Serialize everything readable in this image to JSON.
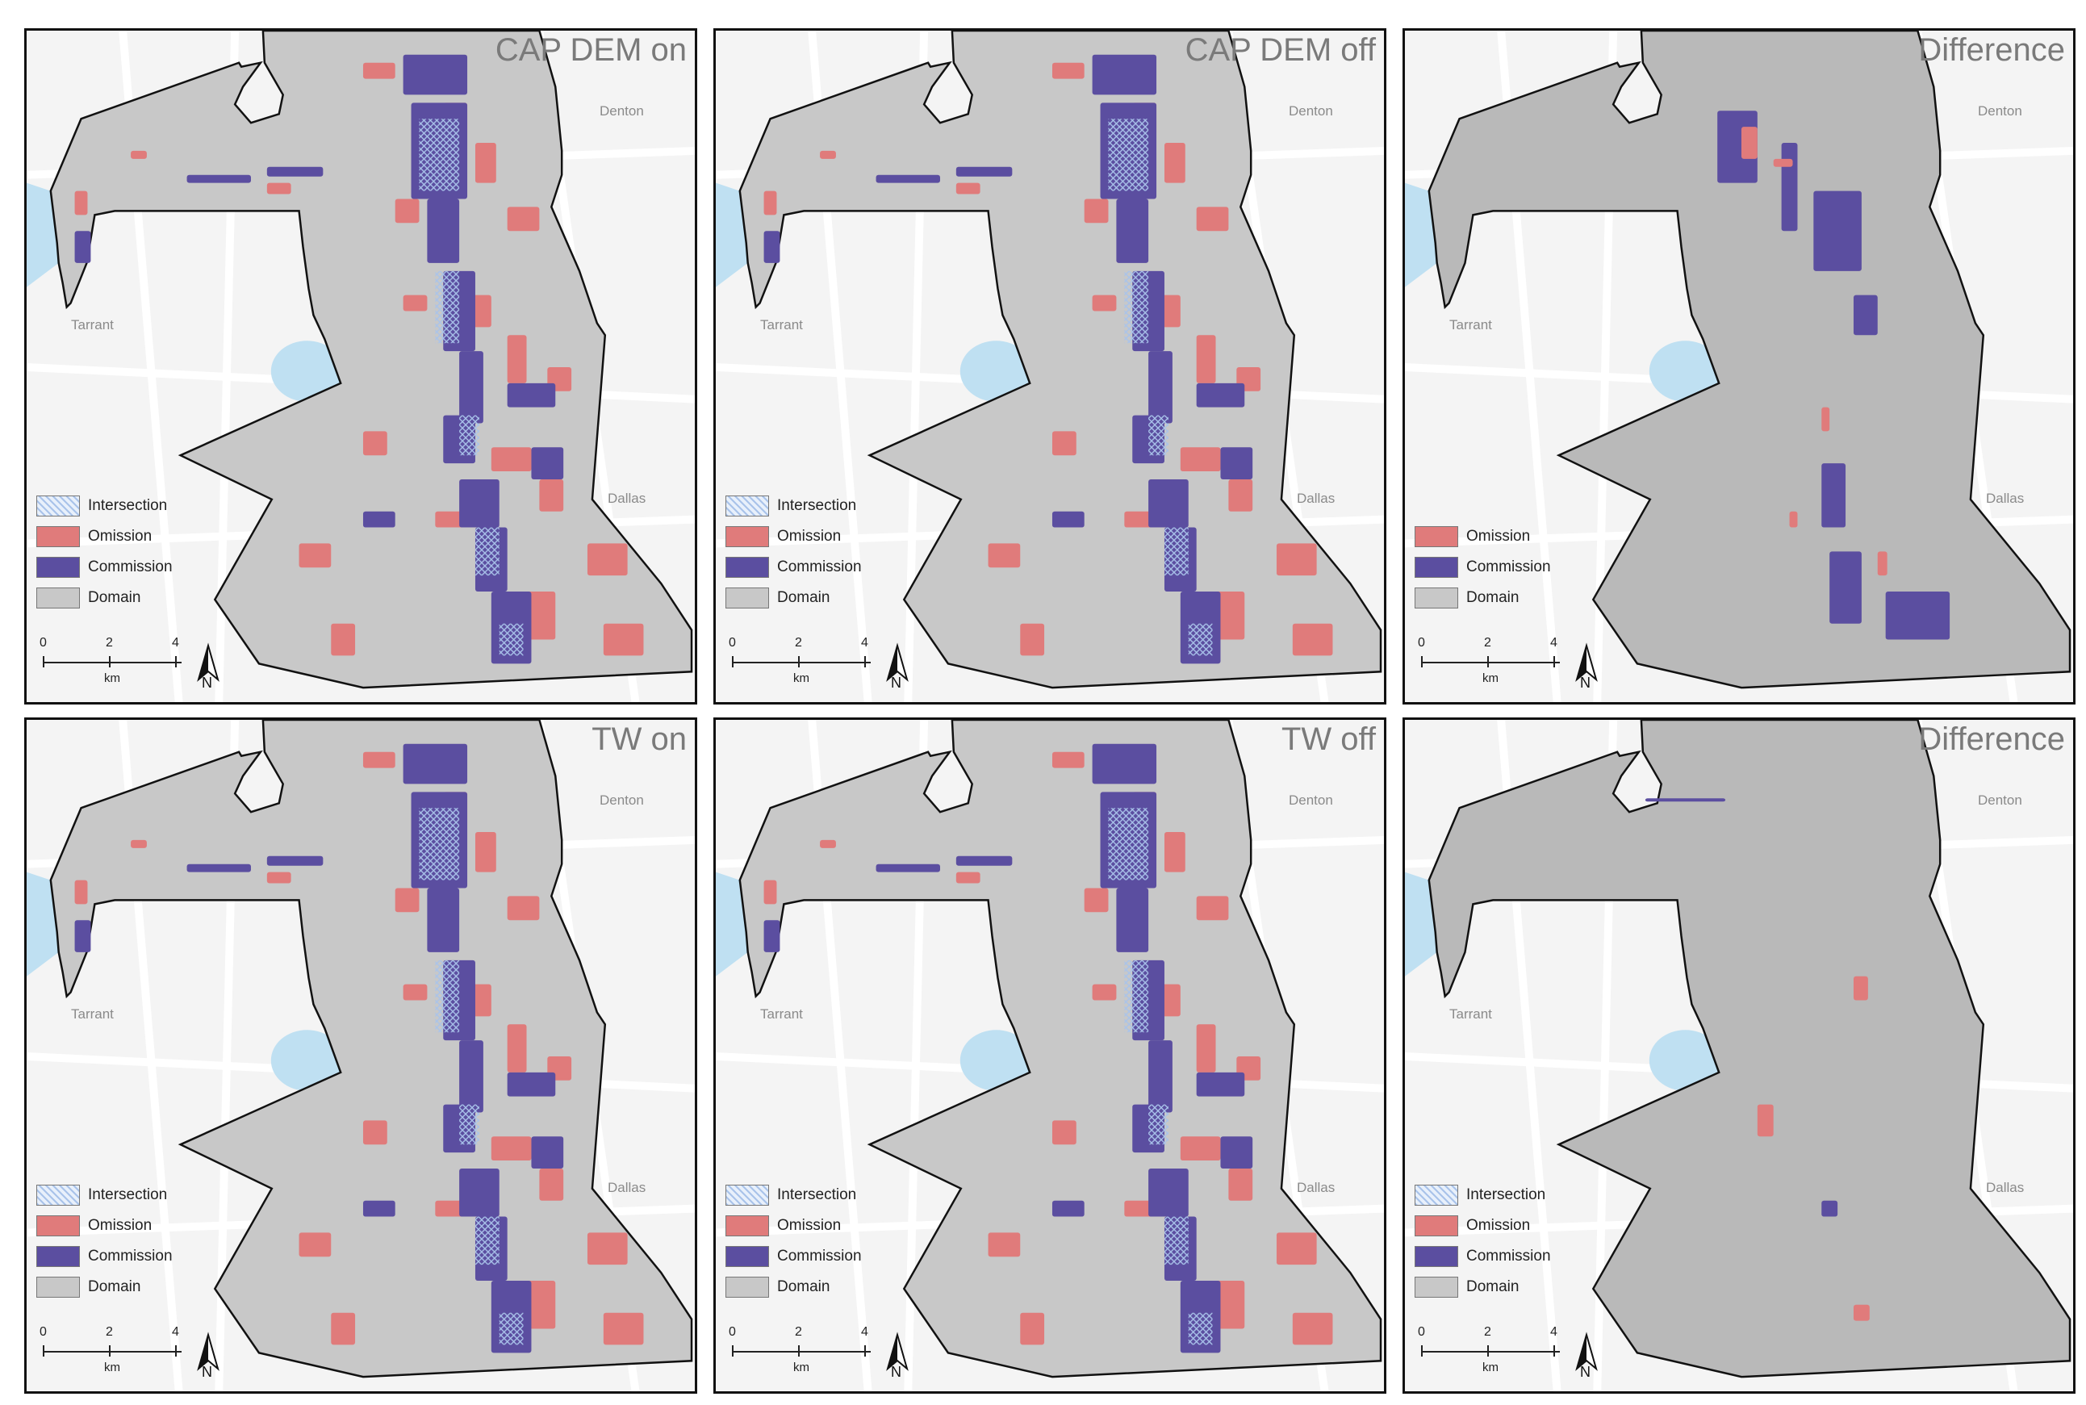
{
  "colors": {
    "omission": "#e07b7b",
    "commission": "#5b4ea0",
    "domain": "#c8c8c8",
    "intersection": "#a9c3ea",
    "basemap": "#f4f4f4",
    "water": "#bfe0f2"
  },
  "legend_labels": {
    "intersection": "Intersection",
    "omission": "Omission",
    "commission": "Commission",
    "domain": "Domain"
  },
  "scale": {
    "ticks": [
      "0",
      "2",
      "4"
    ],
    "unit": "km",
    "north": "N"
  },
  "county_labels": {
    "denton": "Denton",
    "tarrant": "Tarrant",
    "dallas": "Dallas"
  },
  "panels": [
    {
      "title": "CAP DEM on",
      "legend": [
        "intersection",
        "omission",
        "commission",
        "domain"
      ]
    },
    {
      "title": "CAP DEM off",
      "legend": [
        "intersection",
        "omission",
        "commission",
        "domain"
      ]
    },
    {
      "title": "Difference",
      "legend": [
        "omission",
        "commission",
        "domain"
      ]
    },
    {
      "title": "TW on",
      "legend": [
        "intersection",
        "omission",
        "commission",
        "domain"
      ]
    },
    {
      "title": "TW off",
      "legend": [
        "intersection",
        "omission",
        "commission",
        "domain"
      ]
    },
    {
      "title": "Difference",
      "legend": [
        "intersection",
        "omission",
        "commission",
        "domain"
      ]
    }
  ]
}
